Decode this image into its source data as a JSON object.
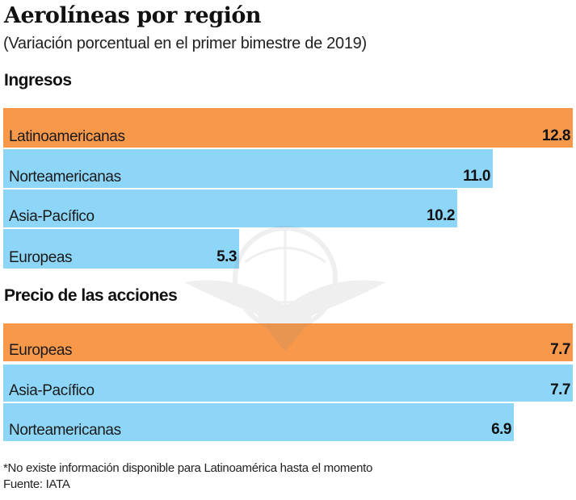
{
  "colors": {
    "highlight": "#F7984A",
    "default": "#8ED6F8",
    "text": "#111111"
  },
  "chart_data": [
    {
      "type": "bar",
      "orientation": "horizontal",
      "title": "Aerolíneas por región",
      "subtitle": "(Variación porcentual en el primer bimestre de 2019)",
      "section": "Ingresos",
      "categories": [
        "Latinoamericanas",
        "Norteamericanas",
        "Asia-Pacífico",
        "Europeas"
      ],
      "values": [
        12.8,
        11.0,
        10.2,
        5.3
      ],
      "value_labels": [
        "12.8",
        "11.0",
        "10.2",
        "5.3"
      ],
      "highlight": [
        true,
        false,
        false,
        false
      ],
      "xlim": [
        0,
        12.8
      ],
      "grid": false,
      "legend": "none"
    },
    {
      "type": "bar",
      "orientation": "horizontal",
      "section": "Precio de las acciones",
      "categories": [
        "Europeas",
        "Asia-Pacífico",
        "Norteamericanas"
      ],
      "values": [
        7.7,
        7.7,
        6.9
      ],
      "value_labels": [
        "7.7",
        "7.7",
        "6.9"
      ],
      "highlight": [
        true,
        false,
        false
      ],
      "xlim": [
        0,
        7.7
      ],
      "grid": false,
      "legend": "none"
    }
  ],
  "header": {
    "title": "Aerolíneas por región",
    "subtitle": "(Variación porcentual en el primer bimestre de 2019)"
  },
  "sections": {
    "ingresos": "Ingresos",
    "acciones": "Precio de las acciones"
  },
  "footer": {
    "note": "*No existe información disponible para Latinoamérica hasta el momento",
    "source": "Fuente: IATA"
  },
  "watermark_icon": "eagle-globe-logo"
}
